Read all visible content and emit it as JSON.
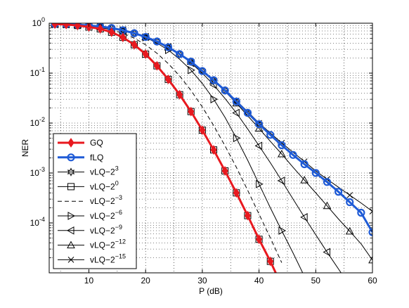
{
  "chart_data": {
    "type": "line",
    "title": "",
    "xlabel": "P (dB)",
    "ylabel": "NER",
    "xlim": [
      3,
      60
    ],
    "ylim_log10": [
      -5,
      0
    ],
    "yscale": "log",
    "grid": true,
    "legend_position": "bottom-left",
    "x_ticks": [
      10,
      20,
      30,
      40,
      50,
      60
    ],
    "y_ticks": [
      {
        "value": 1,
        "base": "10",
        "exp": "0"
      },
      {
        "value": 0.1,
        "base": "10",
        "exp": "-1"
      },
      {
        "value": 0.01,
        "base": "10",
        "exp": "-2"
      },
      {
        "value": 0.001,
        "base": "10",
        "exp": "-3"
      },
      {
        "value": 0.0001,
        "base": "10",
        "exp": "-4"
      }
    ],
    "x": [
      4,
      6,
      8,
      10,
      12,
      14,
      16,
      18,
      20,
      22,
      24,
      26,
      28,
      30,
      32,
      34,
      36,
      38,
      40,
      42,
      44,
      46,
      48,
      50,
      52,
      54,
      56,
      58,
      60
    ],
    "series": [
      {
        "name": "GQ",
        "sup": "",
        "color": "#e8191f",
        "marker": "diamond",
        "width": 3,
        "dash": "",
        "marker_every": 1,
        "y": [
          0.96,
          0.94,
          0.9,
          0.84,
          0.77,
          0.66,
          0.52,
          0.37,
          0.24,
          0.14,
          0.075,
          0.037,
          0.017,
          0.0072,
          0.0029,
          0.0011,
          0.0004,
          0.00014,
          4.7e-05,
          1.7e-05,
          5.5e-06,
          null,
          null,
          null,
          null,
          null,
          null,
          null,
          null
        ]
      },
      {
        "name": "fLQ",
        "sup": "",
        "color": "#1f5bd6",
        "marker": "circle",
        "width": 3,
        "dash": "",
        "marker_every": 1,
        "y": [
          0.96,
          0.95,
          0.93,
          0.9,
          0.86,
          0.8,
          0.72,
          0.63,
          0.53,
          0.43,
          0.33,
          0.24,
          0.17,
          0.11,
          0.072,
          0.045,
          0.027,
          0.016,
          0.0095,
          0.0058,
          0.0036,
          0.0023,
          0.0015,
          0.001,
          0.00066,
          0.00042,
          0.00026,
          0.00016,
          6.5e-05
        ]
      },
      {
        "name": "vLQ−2",
        "sup": "3",
        "color": "#000000",
        "marker": "star",
        "width": 1,
        "dash": "",
        "marker_every": 1,
        "y": [
          0.96,
          0.95,
          0.93,
          0.9,
          0.86,
          0.8,
          0.72,
          0.63,
          0.53,
          0.43,
          0.33,
          0.24,
          0.17,
          0.11,
          0.072,
          0.045,
          0.027,
          0.016,
          0.0095,
          null,
          null,
          null,
          null,
          null,
          null,
          null,
          null,
          null,
          null
        ]
      },
      {
        "name": "vLQ−2",
        "sup": "0",
        "color": "#000000",
        "marker": "square",
        "width": 1,
        "dash": "",
        "marker_every": 1,
        "y": [
          0.96,
          0.94,
          0.9,
          0.84,
          0.77,
          0.66,
          0.52,
          0.37,
          0.24,
          0.14,
          0.075,
          0.037,
          0.017,
          0.0072,
          0.0029,
          0.0011,
          0.0004,
          0.00014,
          4.7e-05,
          1.7e-05,
          5.5e-06,
          null,
          null,
          null,
          null,
          null,
          null,
          null,
          null
        ]
      },
      {
        "name": "vLQ−2",
        "sup": "−3",
        "color": "#000000",
        "marker": "none",
        "width": 1,
        "dash": "6,4",
        "marker_every": 1,
        "y": [
          0.96,
          0.95,
          0.92,
          0.88,
          0.82,
          0.74,
          0.63,
          0.5,
          0.37,
          0.25,
          0.155,
          0.088,
          0.045,
          0.021,
          0.0089,
          0.0035,
          0.0013,
          0.00045,
          0.00015,
          5e-05,
          1.6e-05,
          null,
          null,
          null,
          null,
          null,
          null,
          null,
          null
        ]
      },
      {
        "name": "vLQ−2",
        "sup": "−6",
        "color": "#000000",
        "marker": "triangle-right",
        "width": 1,
        "dash": "",
        "marker_every": 2,
        "y": [
          0.96,
          0.95,
          0.93,
          0.9,
          0.86,
          0.8,
          0.72,
          0.63,
          0.52,
          0.4,
          0.29,
          0.19,
          0.115,
          0.062,
          0.03,
          0.013,
          0.005,
          0.0018,
          0.0006,
          0.0002,
          7e-05,
          2.5e-05,
          8.5e-06,
          null,
          null,
          null,
          null,
          null,
          null
        ]
      },
      {
        "name": "vLQ−2",
        "sup": "−9",
        "color": "#000000",
        "marker": "triangle-left",
        "width": 1,
        "dash": "",
        "marker_every": 2,
        "y": [
          0.96,
          0.95,
          0.93,
          0.9,
          0.86,
          0.8,
          0.72,
          0.63,
          0.53,
          0.43,
          0.33,
          0.24,
          0.16,
          0.1,
          0.058,
          0.031,
          0.016,
          0.0076,
          0.0035,
          0.0016,
          0.0007,
          0.0003,
          0.00013,
          5.8e-05,
          2.6e-05,
          1.2e-05,
          5.5e-06,
          null,
          null
        ]
      },
      {
        "name": "vLQ−2",
        "sup": "−12",
        "color": "#000000",
        "marker": "triangle-up",
        "width": 1,
        "dash": "",
        "marker_every": 2,
        "y": [
          0.96,
          0.95,
          0.93,
          0.9,
          0.86,
          0.8,
          0.72,
          0.63,
          0.53,
          0.43,
          0.33,
          0.24,
          0.17,
          0.11,
          0.071,
          0.043,
          0.025,
          0.014,
          0.0078,
          0.0043,
          0.0024,
          0.0013,
          0.00072,
          0.0004,
          0.00022,
          0.00012,
          6.8e-05,
          3.8e-05,
          1.8e-05
        ]
      },
      {
        "name": "vLQ−2",
        "sup": "−15",
        "color": "#000000",
        "marker": "cross",
        "width": 1,
        "dash": "",
        "marker_every": 2,
        "y": [
          0.96,
          0.95,
          0.93,
          0.9,
          0.86,
          0.8,
          0.72,
          0.63,
          0.53,
          0.43,
          0.33,
          0.24,
          0.17,
          0.11,
          0.072,
          0.045,
          0.028,
          0.017,
          0.01,
          0.0063,
          0.004,
          0.0026,
          0.0017,
          0.0011,
          0.00075,
          0.00052,
          0.00036,
          0.00025,
          0.00017
        ]
      }
    ]
  }
}
